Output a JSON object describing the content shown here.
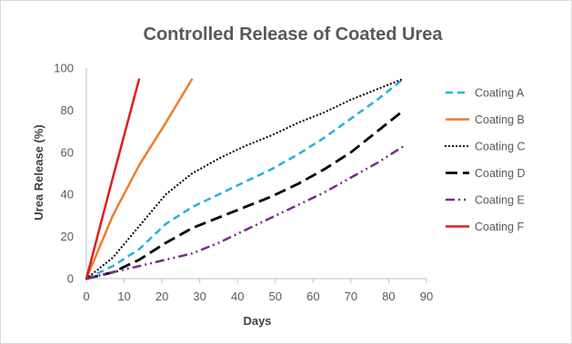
{
  "chart_data": {
    "type": "line",
    "title": "Controlled Release of Coated Urea",
    "xlabel": "Days",
    "ylabel": "Urea Release (%)",
    "xlim": [
      0,
      90
    ],
    "ylim": [
      0,
      100
    ],
    "xticks": [
      "0",
      "10",
      "20",
      "30",
      "40",
      "50",
      "60",
      "70",
      "80",
      "90"
    ],
    "yticks": [
      "0",
      "20",
      "40",
      "60",
      "80",
      "100"
    ],
    "grid": false,
    "legend_position": "right",
    "series": [
      {
        "name": "Coating A",
        "color": "#29aee3",
        "style": "dashed",
        "points": [
          [
            0,
            0
          ],
          [
            7,
            6
          ],
          [
            14,
            14
          ],
          [
            21,
            26
          ],
          [
            28,
            34
          ],
          [
            35,
            40
          ],
          [
            42,
            46
          ],
          [
            49,
            52
          ],
          [
            56,
            59
          ],
          [
            63,
            67
          ],
          [
            70,
            76
          ],
          [
            77,
            85
          ],
          [
            84,
            95
          ]
        ]
      },
      {
        "name": "Coating B",
        "color": "#ed7d31",
        "style": "solid",
        "points": [
          [
            0,
            0
          ],
          [
            7,
            30
          ],
          [
            14,
            54
          ],
          [
            21,
            74
          ],
          [
            28,
            95
          ]
        ]
      },
      {
        "name": "Coating C",
        "color": "#000000",
        "style": "dotted",
        "points": [
          [
            0,
            0
          ],
          [
            7,
            10
          ],
          [
            14,
            25
          ],
          [
            21,
            40
          ],
          [
            28,
            50
          ],
          [
            35,
            57
          ],
          [
            42,
            63
          ],
          [
            49,
            68
          ],
          [
            56,
            74
          ],
          [
            63,
            79
          ],
          [
            70,
            85
          ],
          [
            77,
            90
          ],
          [
            84,
            95
          ]
        ]
      },
      {
        "name": "Coating D",
        "color": "#000000",
        "style": "long-dash",
        "points": [
          [
            0,
            0
          ],
          [
            7,
            3
          ],
          [
            14,
            9
          ],
          [
            21,
            17
          ],
          [
            28,
            24
          ],
          [
            35,
            29
          ],
          [
            42,
            34
          ],
          [
            49,
            39
          ],
          [
            56,
            45
          ],
          [
            63,
            52
          ],
          [
            70,
            60
          ],
          [
            77,
            70
          ],
          [
            84,
            80
          ]
        ]
      },
      {
        "name": "Coating E",
        "color": "#7b2a8f",
        "style": "dash-dot-dot",
        "points": [
          [
            0,
            0
          ],
          [
            7,
            3
          ],
          [
            14,
            6
          ],
          [
            21,
            9
          ],
          [
            28,
            12
          ],
          [
            35,
            17
          ],
          [
            42,
            23
          ],
          [
            49,
            29
          ],
          [
            56,
            35
          ],
          [
            63,
            41
          ],
          [
            70,
            48
          ],
          [
            77,
            55
          ],
          [
            84,
            63
          ]
        ]
      },
      {
        "name": "Coating F",
        "color": "#e31a1c",
        "style": "solid",
        "points": [
          [
            0,
            0
          ],
          [
            7,
            48
          ],
          [
            14,
            95
          ]
        ]
      }
    ]
  }
}
